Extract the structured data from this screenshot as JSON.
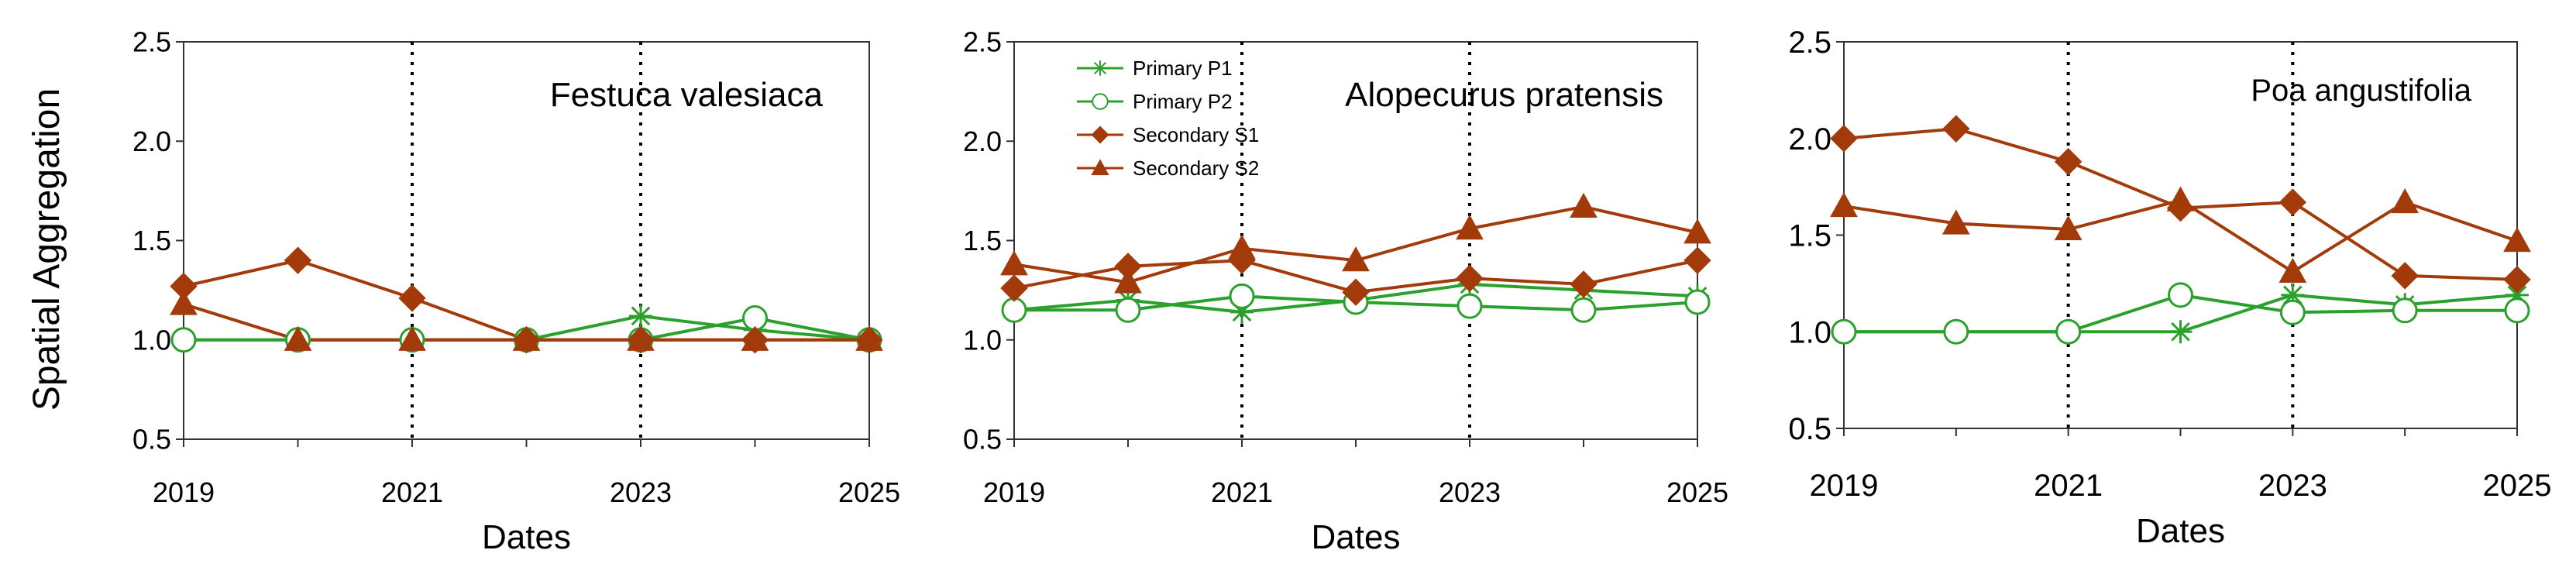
{
  "figure": {
    "ylabel": "Spatial Aggregation"
  },
  "chart_data": [
    {
      "type": "line",
      "title": "Festuca valesiaca",
      "xlabel": "Dates",
      "ylabel": "Spatial Aggregation",
      "x": [
        2019,
        2020,
        2021,
        2022,
        2023,
        2024,
        2025
      ],
      "xticks": [
        "2019",
        "2021",
        "2023",
        "2025"
      ],
      "yticks": [
        "0.5",
        "1.0",
        "1.5",
        "2.0",
        "2.5"
      ],
      "ylim": [
        0.5,
        2.5
      ],
      "xlim": [
        2019,
        2025
      ],
      "vlines": [
        2021,
        2023
      ],
      "series": [
        {
          "name": "Primary P1",
          "color": "#2ca02c",
          "marker": "asterisk",
          "values": [
            1.0,
            1.0,
            1.0,
            1.0,
            1.12,
            1.05,
            1.0
          ]
        },
        {
          "name": "Primary P2",
          "color": "#2ca02c",
          "marker": "circle",
          "values": [
            1.0,
            1.0,
            1.0,
            1.0,
            1.0,
            1.11,
            1.0
          ]
        },
        {
          "name": "Secondary S1",
          "color": "#a33a0a",
          "marker": "diamond",
          "values": [
            1.27,
            1.4,
            1.21,
            1.0,
            1.0,
            1.0,
            1.0
          ]
        },
        {
          "name": "Secondary S2",
          "color": "#a33a0a",
          "marker": "triangle",
          "values": [
            1.18,
            1.0,
            1.0,
            1.0,
            1.0,
            1.0,
            1.0
          ]
        }
      ]
    },
    {
      "type": "line",
      "title": "Alopecurus pratensis",
      "xlabel": "Dates",
      "ylabel": "Spatial Aggregation",
      "x": [
        2019,
        2020,
        2021,
        2022,
        2023,
        2024,
        2025
      ],
      "xticks": [
        "2019",
        "2021",
        "2023",
        "2025"
      ],
      "yticks": [
        "0.5",
        "1.0",
        "1.5",
        "2.0",
        "2.5"
      ],
      "ylim": [
        0.5,
        2.5
      ],
      "xlim": [
        2019,
        2025
      ],
      "vlines": [
        2021,
        2023
      ],
      "legend": "top-left",
      "series": [
        {
          "name": "Primary P1",
          "color": "#2ca02c",
          "marker": "asterisk",
          "values": [
            1.15,
            1.2,
            1.14,
            1.2,
            1.28,
            1.25,
            1.22
          ]
        },
        {
          "name": "Primary P2",
          "color": "#2ca02c",
          "marker": "circle",
          "values": [
            1.15,
            1.15,
            1.22,
            1.19,
            1.17,
            1.15,
            1.19
          ]
        },
        {
          "name": "Secondary S1",
          "color": "#a33a0a",
          "marker": "diamond",
          "values": [
            1.26,
            1.37,
            1.4,
            1.24,
            1.31,
            1.28,
            1.4
          ]
        },
        {
          "name": "Secondary S2",
          "color": "#a33a0a",
          "marker": "triangle",
          "values": [
            1.38,
            1.29,
            1.46,
            1.4,
            1.56,
            1.67,
            1.54
          ]
        }
      ]
    },
    {
      "type": "line",
      "title": "Poa angustifolia",
      "xlabel": "Dates",
      "ylabel": "Spatial Aggregation",
      "x": [
        2019,
        2020,
        2021,
        2022,
        2023,
        2024,
        2025
      ],
      "xticks": [
        "2019",
        "2021",
        "2023",
        "2025"
      ],
      "yticks": [
        "0.5",
        "1.0",
        "1.5",
        "2.0",
        "2.5"
      ],
      "ylim": [
        0.5,
        2.5
      ],
      "xlim": [
        2019,
        2025
      ],
      "vlines": [
        2021,
        2023
      ],
      "series": [
        {
          "name": "Primary P1",
          "color": "#2ca02c",
          "marker": "asterisk",
          "values": [
            1.0,
            1.0,
            1.0,
            1.0,
            1.19,
            1.14,
            1.19
          ]
        },
        {
          "name": "Primary P2",
          "color": "#2ca02c",
          "marker": "circle",
          "values": [
            1.0,
            1.0,
            1.0,
            1.19,
            1.1,
            1.11,
            1.11
          ]
        },
        {
          "name": "Secondary S1",
          "color": "#a33a0a",
          "marker": "diamond",
          "values": [
            2.0,
            2.05,
            1.88,
            1.64,
            1.67,
            1.29,
            1.27
          ]
        },
        {
          "name": "Secondary S2",
          "color": "#a33a0a",
          "marker": "triangle",
          "values": [
            1.65,
            1.56,
            1.53,
            1.68,
            1.31,
            1.67,
            1.47
          ]
        }
      ]
    }
  ]
}
